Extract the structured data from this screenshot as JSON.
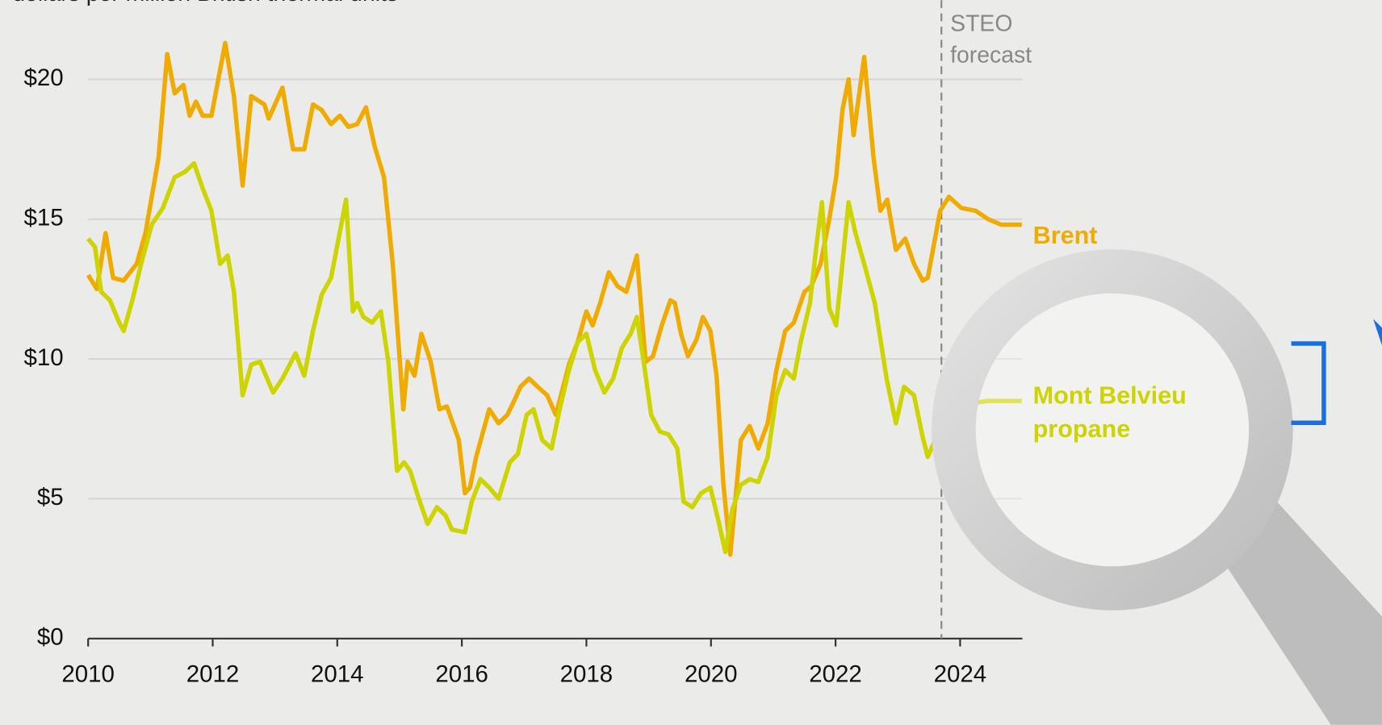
{
  "chart_data": {
    "type": "line",
    "y_label": "dollars per million British thermal units",
    "annotation": [
      "STEO",
      "forecast"
    ],
    "forecast_x": 2023.7,
    "xlim": [
      2010,
      2025
    ],
    "ylim": [
      0,
      22.8
    ],
    "xticks": [
      2010,
      2012,
      2014,
      2016,
      2018,
      2020,
      2022,
      2024
    ],
    "yticks": [
      {
        "value": 0,
        "label": "$0"
      },
      {
        "value": 5,
        "label": "$5"
      },
      {
        "value": 10,
        "label": "$10"
      },
      {
        "value": 15,
        "label": "$15"
      },
      {
        "value": 20,
        "label": "$20"
      }
    ],
    "grid": true,
    "series": [
      {
        "name": "Brent",
        "color": "#f0ab00",
        "x": [
          2010.0,
          2010.14,
          2010.28,
          2010.4,
          2010.57,
          2010.78,
          2010.92,
          2011.13,
          2011.27,
          2011.39,
          2011.53,
          2011.63,
          2011.73,
          2011.84,
          2011.98,
          2012.2,
          2012.34,
          2012.48,
          2012.62,
          2012.83,
          2012.9,
          2013.12,
          2013.29,
          2013.47,
          2013.61,
          2013.75,
          2013.9,
          2014.04,
          2014.18,
          2014.32,
          2014.46,
          2014.6,
          2014.75,
          2014.89,
          2015.06,
          2015.13,
          2015.24,
          2015.35,
          2015.5,
          2015.64,
          2015.76,
          2015.95,
          2016.05,
          2016.13,
          2016.23,
          2016.44,
          2016.59,
          2016.73,
          2016.84,
          2016.94,
          2017.08,
          2017.22,
          2017.37,
          2017.51,
          2017.72,
          2017.86,
          2018.0,
          2018.1,
          2018.22,
          2018.36,
          2018.5,
          2018.64,
          2018.81,
          2018.95,
          2019.07,
          2019.21,
          2019.35,
          2019.42,
          2019.52,
          2019.63,
          2019.77,
          2019.87,
          2019.99,
          2020.09,
          2020.2,
          2020.31,
          2020.48,
          2020.62,
          2020.76,
          2020.91,
          2021.05,
          2021.19,
          2021.33,
          2021.5,
          2021.61,
          2021.76,
          2021.9,
          2022.01,
          2022.11,
          2022.21,
          2022.29,
          2022.46,
          2022.61,
          2022.72,
          2022.83,
          2022.97,
          2023.12,
          2023.26,
          2023.4,
          2023.48,
          2023.68,
          2023.82,
          2024.02,
          2024.25,
          2024.45,
          2024.66,
          2024.99
        ],
        "values": [
          13.0,
          12.5,
          14.5,
          12.9,
          12.8,
          13.4,
          14.5,
          17.2,
          20.9,
          19.5,
          19.8,
          18.7,
          19.2,
          18.7,
          18.7,
          21.3,
          19.4,
          16.2,
          19.4,
          19.1,
          18.6,
          19.7,
          17.5,
          17.5,
          19.1,
          18.9,
          18.4,
          18.7,
          18.3,
          18.4,
          19.0,
          17.6,
          16.5,
          13.4,
          8.2,
          9.9,
          9.4,
          10.9,
          9.9,
          8.2,
          8.3,
          7.1,
          5.2,
          5.4,
          6.5,
          8.2,
          7.7,
          8.0,
          8.5,
          9.0,
          9.3,
          9.0,
          8.7,
          8.0,
          9.8,
          10.6,
          11.7,
          11.2,
          12.0,
          13.1,
          12.6,
          12.4,
          13.7,
          9.9,
          10.1,
          11.2,
          12.1,
          12.0,
          10.9,
          10.1,
          10.7,
          11.5,
          11.0,
          9.4,
          5.5,
          3.0,
          7.1,
          7.6,
          6.8,
          7.7,
          9.6,
          11.0,
          11.3,
          12.4,
          12.6,
          13.4,
          15.0,
          16.5,
          18.9,
          20.0,
          18.0,
          20.8,
          17.2,
          15.3,
          15.7,
          13.9,
          14.3,
          13.4,
          12.8,
          12.9,
          15.3,
          15.8,
          15.4,
          15.3,
          15.0,
          14.8,
          14.8
        ]
      },
      {
        "name": "Mont Belvieu propane",
        "color": "#cdd400",
        "x": [
          2010.0,
          2010.11,
          2010.21,
          2010.35,
          2010.5,
          2010.57,
          2010.71,
          2010.85,
          2011.02,
          2011.2,
          2011.39,
          2011.56,
          2011.7,
          2011.84,
          2011.98,
          2012.12,
          2012.24,
          2012.34,
          2012.48,
          2012.62,
          2012.76,
          2012.97,
          2013.12,
          2013.33,
          2013.47,
          2013.61,
          2013.75,
          2013.9,
          2014.14,
          2014.25,
          2014.32,
          2014.42,
          2014.56,
          2014.7,
          2014.82,
          2014.96,
          2015.07,
          2015.17,
          2015.31,
          2015.45,
          2015.6,
          2015.74,
          2015.84,
          2016.05,
          2016.16,
          2016.3,
          2016.44,
          2016.59,
          2016.77,
          2016.9,
          2017.04,
          2017.15,
          2017.29,
          2017.44,
          2017.58,
          2017.72,
          2017.86,
          2018.0,
          2018.14,
          2018.29,
          2018.43,
          2018.57,
          2018.71,
          2018.81,
          2018.92,
          2019.04,
          2019.18,
          2019.32,
          2019.46,
          2019.56,
          2019.7,
          2019.84,
          2019.99,
          2020.13,
          2020.23,
          2020.34,
          2020.48,
          2020.62,
          2020.76,
          2020.91,
          2021.05,
          2021.19,
          2021.33,
          2021.44,
          2021.59,
          2021.69,
          2021.78,
          2021.9,
          2022.01,
          2022.21,
          2022.32,
          2022.46,
          2022.63,
          2022.82,
          2022.97,
          2023.1,
          2023.26,
          2023.4,
          2023.48,
          2023.6,
          2023.74,
          2023.95,
          2024.16,
          2024.45,
          2024.99
        ],
        "values": [
          14.3,
          14.0,
          12.4,
          12.1,
          11.3,
          11.0,
          12.1,
          13.4,
          14.8,
          15.4,
          16.5,
          16.7,
          17.0,
          16.1,
          15.3,
          13.4,
          13.7,
          12.4,
          8.7,
          9.8,
          9.9,
          8.8,
          9.3,
          10.2,
          9.4,
          11.0,
          12.3,
          12.9,
          15.7,
          11.7,
          12.0,
          11.5,
          11.3,
          11.7,
          9.9,
          6.0,
          6.3,
          6.0,
          5.0,
          4.1,
          4.7,
          4.4,
          3.9,
          3.8,
          4.9,
          5.7,
          5.4,
          5.0,
          6.3,
          6.6,
          8.0,
          8.2,
          7.1,
          6.8,
          8.3,
          9.6,
          10.6,
          10.9,
          9.6,
          8.8,
          9.3,
          10.4,
          10.9,
          11.5,
          9.9,
          8.0,
          7.4,
          7.3,
          6.8,
          4.9,
          4.7,
          5.2,
          5.4,
          4.1,
          3.1,
          4.6,
          5.5,
          5.7,
          5.6,
          6.5,
          8.7,
          9.6,
          9.3,
          10.6,
          12.0,
          14.0,
          15.6,
          11.8,
          11.2,
          15.6,
          14.5,
          13.4,
          12.0,
          9.3,
          7.7,
          9.0,
          8.7,
          7.2,
          6.5,
          7.1,
          7.7,
          8.2,
          8.4,
          8.5,
          8.5
        ]
      }
    ]
  }
}
